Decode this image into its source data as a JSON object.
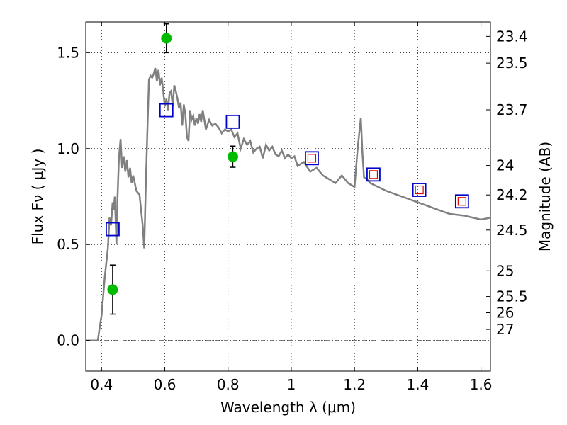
{
  "chart_data": {
    "type": "scatter",
    "xlabel": "Wavelength  λ (μm)",
    "ylabel": "Flux  Fν  ( μJy )",
    "y2label": "Magnitude (AB)",
    "xlim": [
      0.35,
      1.63
    ],
    "ylim": [
      -0.16,
      1.66
    ],
    "grid": true,
    "x_ticks": [
      {
        "value": 0.4,
        "label": "0.4"
      },
      {
        "value": 0.6,
        "label": "0.6"
      },
      {
        "value": 0.8,
        "label": "0.8"
      },
      {
        "value": 1.0,
        "label": "1"
      },
      {
        "value": 1.2,
        "label": "1.2"
      },
      {
        "value": 1.4,
        "label": "1.4"
      },
      {
        "value": 1.6,
        "label": "1.6"
      }
    ],
    "y_ticks": [
      {
        "value": 0.0,
        "label": "0.0"
      },
      {
        "value": 0.5,
        "label": "0.5"
      },
      {
        "value": 1.0,
        "label": "1.0"
      },
      {
        "value": 1.5,
        "label": "1.5"
      }
    ],
    "mag_ticks": [
      {
        "value": 23.4,
        "label": "23.4"
      },
      {
        "value": 23.5,
        "label": "23.5"
      },
      {
        "value": 23.7,
        "label": "23.7"
      },
      {
        "value": 24.0,
        "label": "24"
      },
      {
        "value": 24.2,
        "label": "24.2"
      },
      {
        "value": 24.5,
        "label": "24.5"
      },
      {
        "value": 25.0,
        "label": "25"
      },
      {
        "value": 25.5,
        "label": "25.5"
      },
      {
        "value": 26.0,
        "label": "26"
      },
      {
        "value": 27.0,
        "label": "27"
      }
    ],
    "colors": {
      "model": "#808080",
      "observed": "#00bb00",
      "model_photometry_blue": "#0000cc",
      "model_photometry_red": "#dd0000"
    },
    "model_spectrum": {
      "x": [
        0.35,
        0.388,
        0.395,
        0.4,
        0.41,
        0.42,
        0.425,
        0.43,
        0.435,
        0.438,
        0.442,
        0.447,
        0.45,
        0.455,
        0.46,
        0.465,
        0.47,
        0.475,
        0.48,
        0.485,
        0.49,
        0.495,
        0.5,
        0.51,
        0.52,
        0.53,
        0.535,
        0.54,
        0.545,
        0.55,
        0.555,
        0.56,
        0.565,
        0.57,
        0.575,
        0.58,
        0.585,
        0.59,
        0.595,
        0.6,
        0.605,
        0.61,
        0.615,
        0.62,
        0.625,
        0.63,
        0.635,
        0.64,
        0.645,
        0.65,
        0.655,
        0.66,
        0.665,
        0.67,
        0.675,
        0.68,
        0.685,
        0.69,
        0.695,
        0.7,
        0.705,
        0.71,
        0.715,
        0.72,
        0.73,
        0.74,
        0.75,
        0.76,
        0.77,
        0.78,
        0.79,
        0.8,
        0.81,
        0.82,
        0.83,
        0.84,
        0.85,
        0.86,
        0.87,
        0.88,
        0.89,
        0.9,
        0.91,
        0.92,
        0.93,
        0.94,
        0.95,
        0.96,
        0.97,
        0.98,
        0.99,
        1.0,
        1.01,
        1.02,
        1.04,
        1.06,
        1.08,
        1.1,
        1.12,
        1.14,
        1.16,
        1.18,
        1.2,
        1.21,
        1.22,
        1.225,
        1.23,
        1.24,
        1.25,
        1.3,
        1.35,
        1.4,
        1.45,
        1.5,
        1.55,
        1.6,
        1.63
      ],
      "y": [
        0.0,
        0.0,
        0.08,
        0.13,
        0.33,
        0.48,
        0.64,
        0.6,
        0.72,
        0.68,
        0.75,
        0.5,
        0.72,
        0.95,
        1.05,
        0.9,
        0.96,
        0.88,
        0.94,
        0.85,
        0.9,
        0.82,
        0.86,
        0.78,
        0.76,
        0.6,
        0.48,
        0.82,
        1.1,
        1.36,
        1.38,
        1.37,
        1.39,
        1.42,
        1.35,
        1.41,
        1.33,
        1.37,
        1.3,
        1.22,
        1.26,
        1.2,
        1.29,
        1.3,
        1.22,
        1.33,
        1.3,
        1.26,
        1.21,
        1.24,
        1.12,
        1.23,
        1.18,
        1.06,
        1.04,
        1.2,
        1.15,
        1.17,
        1.12,
        1.16,
        1.13,
        1.18,
        1.14,
        1.2,
        1.1,
        1.15,
        1.12,
        1.13,
        1.11,
        1.08,
        1.1,
        1.09,
        1.1,
        1.06,
        1.08,
        1.0,
        1.05,
        1.02,
        1.04,
        0.98,
        1.0,
        1.01,
        0.95,
        1.02,
        0.99,
        1.01,
        0.97,
        0.96,
        0.99,
        0.95,
        0.97,
        0.95,
        0.96,
        0.91,
        0.93,
        0.88,
        0.9,
        0.86,
        0.84,
        0.82,
        0.86,
        0.82,
        0.8,
        1.0,
        1.16,
        0.98,
        0.85,
        0.84,
        0.82,
        0.78,
        0.75,
        0.72,
        0.69,
        0.66,
        0.65,
        0.63,
        0.64
      ]
    },
    "observed": {
      "x": [
        0.435,
        0.605,
        0.815
      ],
      "y": [
        0.265,
        1.575,
        0.958
      ],
      "yerr": [
        0.128,
        0.075,
        0.055
      ]
    },
    "model_photometry": {
      "x": [
        0.435,
        0.605,
        0.815,
        1.065,
        1.26,
        1.405,
        1.54
      ],
      "y": [
        0.58,
        1.2,
        1.14,
        0.95,
        0.865,
        0.785,
        0.725
      ],
      "red_inner": [
        false,
        false,
        false,
        true,
        true,
        true,
        true
      ]
    }
  }
}
